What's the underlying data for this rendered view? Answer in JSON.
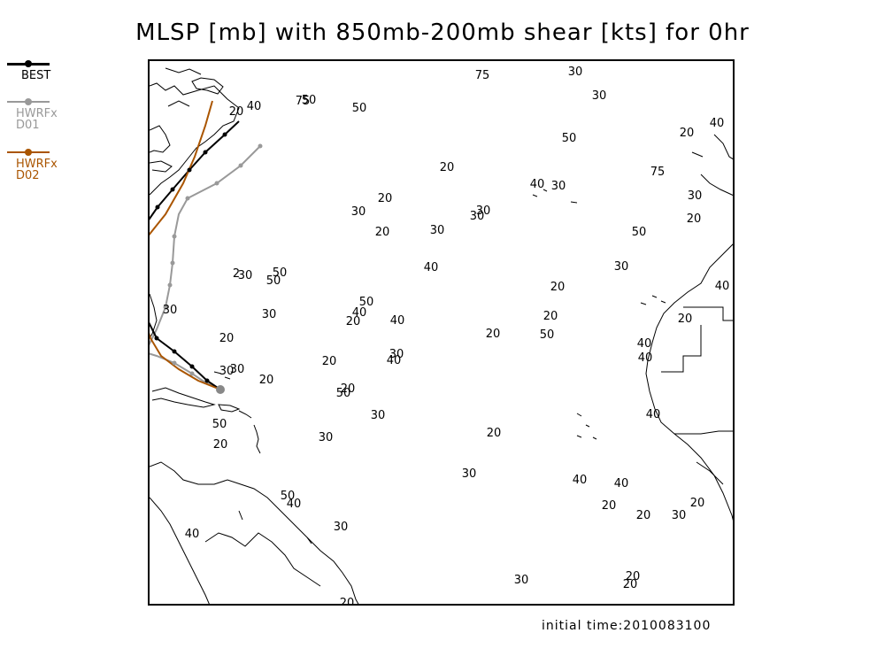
{
  "title": "MLSP [mb] with 850mb-200mb shear [kts] for 0hr",
  "initial_time": "initial time:2010083100",
  "legend": [
    {
      "label": "BEST",
      "color": "#000000"
    },
    {
      "label": "HWRFx D01",
      "color": "#999999"
    },
    {
      "label": "HWRFx D02",
      "color": "#aa5500"
    }
  ],
  "shear_labels": [
    "75",
    "30",
    "50",
    "30",
    "20",
    "40",
    "75",
    "50",
    "50",
    "20",
    "40",
    "20",
    "75",
    "40",
    "30",
    "30",
    "20",
    "30",
    "30",
    "30",
    "20",
    "20",
    "30",
    "50",
    "40",
    "30",
    "2",
    "30",
    "50",
    "50",
    "20",
    "40",
    "50",
    "40",
    "30",
    "20",
    "40",
    "20",
    "30",
    "20",
    "20",
    "50",
    "20",
    "40",
    "40",
    "30",
    "20",
    "40",
    "30",
    "30",
    "20",
    "50",
    "30",
    "40",
    "50",
    "30",
    "20",
    "20",
    "30",
    "40",
    "40",
    "50",
    "40",
    "20",
    "20",
    "30",
    "20",
    "40",
    "30",
    "20",
    "20",
    "30",
    "20",
    "20"
  ],
  "tracks": {
    "best_color": "#000000",
    "d01_color": "#999999",
    "d02_color": "#aa5500",
    "storm_marker_color": "#888888"
  }
}
